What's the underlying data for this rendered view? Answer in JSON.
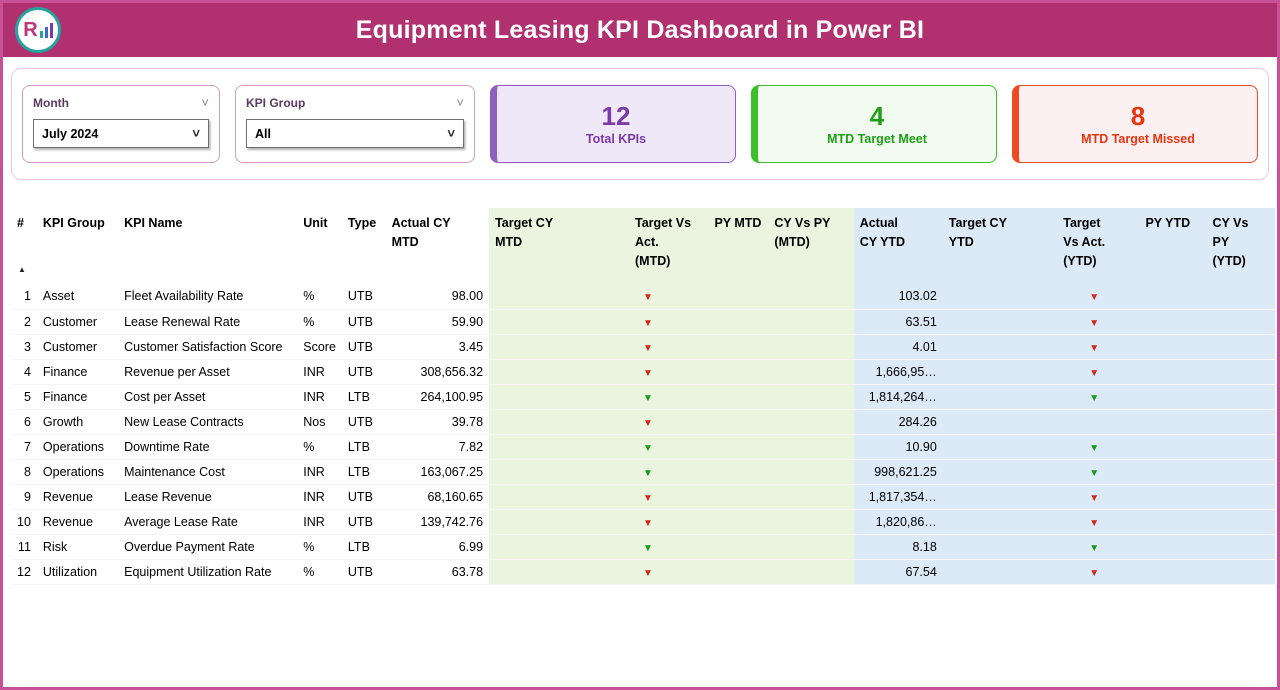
{
  "header": {
    "title": "Equipment Leasing KPI Dashboard in Power BI",
    "logo_text": "R"
  },
  "filters": {
    "month": {
      "label": "Month",
      "value": "July 2024"
    },
    "kpi_group": {
      "label": "KPI Group",
      "value": "All"
    }
  },
  "cards": [
    {
      "value": "12",
      "label": "Total KPIs",
      "accent": "#7A3BA6"
    },
    {
      "value": "4",
      "label": "MTD Target Meet",
      "accent": "#3DBE2B"
    },
    {
      "value": "8",
      "label": "MTD Target Missed",
      "accent": "#EE4A21"
    }
  ],
  "colors": {
    "header_bar": "#B03070",
    "frame_border": "#C85097",
    "band_green": "#EAF4DE",
    "band_blue": "#DCE9F6",
    "arrow_red": "#D02818",
    "arrow_green": "#149A14"
  },
  "table": {
    "sort": {
      "column": "#",
      "direction": "ascending"
    },
    "columns": [
      {
        "label": "#"
      },
      {
        "label": "KPI Group"
      },
      {
        "label": "KPI Name"
      },
      {
        "label": "Unit"
      },
      {
        "label": "Type"
      },
      {
        "label": "Actual CY MTD"
      },
      {
        "label": "Target CY MTD"
      },
      {
        "label": "Target Vs Act. (MTD)"
      },
      {
        "label": "PY MTD"
      },
      {
        "label": "CY Vs PY (MTD)"
      },
      {
        "label": "Actual CY YTD"
      },
      {
        "label": "Target CY YTD"
      },
      {
        "label": "Target Vs Act. (YTD)"
      },
      {
        "label": "PY YTD"
      },
      {
        "label": "CY Vs PY (YTD)"
      }
    ],
    "rows": [
      {
        "num": "1",
        "group": "Asset",
        "name": "Fleet Availability Rate",
        "unit": "%",
        "type": "UTB",
        "actual_cy_mtd": "98.00",
        "target_cy_mtd": "",
        "target_vs_act_mtd": "down-red",
        "py_mtd": "",
        "cy_vs_py_mtd": "",
        "actual_cy_ytd": "103.02",
        "target_cy_ytd": "",
        "target_vs_act_ytd": "down-red",
        "py_ytd": "",
        "cy_vs_py_ytd": ""
      },
      {
        "num": "2",
        "group": "Customer",
        "name": "Lease Renewal Rate",
        "unit": "%",
        "type": "UTB",
        "actual_cy_mtd": "59.90",
        "target_cy_mtd": "",
        "target_vs_act_mtd": "down-red",
        "py_mtd": "",
        "cy_vs_py_mtd": "",
        "actual_cy_ytd": "63.51",
        "target_cy_ytd": "",
        "target_vs_act_ytd": "down-red",
        "py_ytd": "",
        "cy_vs_py_ytd": ""
      },
      {
        "num": "3",
        "group": "Customer",
        "name": "Customer Satisfaction Score",
        "unit": "Score",
        "type": "UTB",
        "actual_cy_mtd": "3.45",
        "target_cy_mtd": "",
        "target_vs_act_mtd": "down-red",
        "py_mtd": "",
        "cy_vs_py_mtd": "",
        "actual_cy_ytd": "4.01",
        "target_cy_ytd": "",
        "target_vs_act_ytd": "down-red",
        "py_ytd": "",
        "cy_vs_py_ytd": ""
      },
      {
        "num": "4",
        "group": "Finance",
        "name": "Revenue per Asset",
        "unit": "INR",
        "type": "UTB",
        "actual_cy_mtd": "308,656.32",
        "target_cy_mtd": "",
        "target_vs_act_mtd": "down-red",
        "py_mtd": "",
        "cy_vs_py_mtd": "",
        "actual_cy_ytd": "1,666,95…",
        "target_cy_ytd": "",
        "target_vs_act_ytd": "down-red",
        "py_ytd": "",
        "cy_vs_py_ytd": ""
      },
      {
        "num": "5",
        "group": "Finance",
        "name": "Cost per Asset",
        "unit": "INR",
        "type": "LTB",
        "actual_cy_mtd": "264,100.95",
        "target_cy_mtd": "",
        "target_vs_act_mtd": "down-green",
        "py_mtd": "",
        "cy_vs_py_mtd": "",
        "actual_cy_ytd": "1,814,264…",
        "target_cy_ytd": "",
        "target_vs_act_ytd": "down-green",
        "py_ytd": "",
        "cy_vs_py_ytd": ""
      },
      {
        "num": "6",
        "group": "Growth",
        "name": "New Lease Contracts",
        "unit": "Nos",
        "type": "UTB",
        "actual_cy_mtd": "39.78",
        "target_cy_mtd": "",
        "target_vs_act_mtd": "down-red",
        "py_mtd": "",
        "cy_vs_py_mtd": "",
        "actual_cy_ytd": "284.26",
        "target_cy_ytd": "",
        "target_vs_act_ytd": "",
        "py_ytd": "",
        "cy_vs_py_ytd": ""
      },
      {
        "num": "7",
        "group": "Operations",
        "name": "Downtime Rate",
        "unit": "%",
        "type": "LTB",
        "actual_cy_mtd": "7.82",
        "target_cy_mtd": "",
        "target_vs_act_mtd": "down-green",
        "py_mtd": "",
        "cy_vs_py_mtd": "",
        "actual_cy_ytd": "10.90",
        "target_cy_ytd": "",
        "target_vs_act_ytd": "down-green",
        "py_ytd": "",
        "cy_vs_py_ytd": ""
      },
      {
        "num": "8",
        "group": "Operations",
        "name": "Maintenance Cost",
        "unit": "INR",
        "type": "LTB",
        "actual_cy_mtd": "163,067.25",
        "target_cy_mtd": "",
        "target_vs_act_mtd": "down-green",
        "py_mtd": "",
        "cy_vs_py_mtd": "",
        "actual_cy_ytd": "998,621.25",
        "target_cy_ytd": "",
        "target_vs_act_ytd": "down-green",
        "py_ytd": "",
        "cy_vs_py_ytd": ""
      },
      {
        "num": "9",
        "group": "Revenue",
        "name": "Lease Revenue",
        "unit": "INR",
        "type": "UTB",
        "actual_cy_mtd": "68,160.65",
        "target_cy_mtd": "",
        "target_vs_act_mtd": "down-red",
        "py_mtd": "",
        "cy_vs_py_mtd": "",
        "actual_cy_ytd": "1,817,354…",
        "target_cy_ytd": "",
        "target_vs_act_ytd": "down-red",
        "py_ytd": "",
        "cy_vs_py_ytd": ""
      },
      {
        "num": "10",
        "group": "Revenue",
        "name": "Average Lease Rate",
        "unit": "INR",
        "type": "UTB",
        "actual_cy_mtd": "139,742.76",
        "target_cy_mtd": "",
        "target_vs_act_mtd": "down-red",
        "py_mtd": "",
        "cy_vs_py_mtd": "",
        "actual_cy_ytd": "1,820,86…",
        "target_cy_ytd": "",
        "target_vs_act_ytd": "down-red",
        "py_ytd": "",
        "cy_vs_py_ytd": ""
      },
      {
        "num": "11",
        "group": "Risk",
        "name": "Overdue Payment Rate",
        "unit": "%",
        "type": "LTB",
        "actual_cy_mtd": "6.99",
        "target_cy_mtd": "",
        "target_vs_act_mtd": "down-green",
        "py_mtd": "",
        "cy_vs_py_mtd": "",
        "actual_cy_ytd": "8.18",
        "target_cy_ytd": "",
        "target_vs_act_ytd": "down-green",
        "py_ytd": "",
        "cy_vs_py_ytd": ""
      },
      {
        "num": "12",
        "group": "Utilization",
        "name": "Equipment Utilization Rate",
        "unit": "%",
        "type": "UTB",
        "actual_cy_mtd": "63.78",
        "target_cy_mtd": "",
        "target_vs_act_mtd": "down-red",
        "py_mtd": "",
        "cy_vs_py_mtd": "",
        "actual_cy_ytd": "67.54",
        "target_cy_ytd": "",
        "target_vs_act_ytd": "down-red",
        "py_ytd": "",
        "cy_vs_py_ytd": ""
      }
    ]
  }
}
